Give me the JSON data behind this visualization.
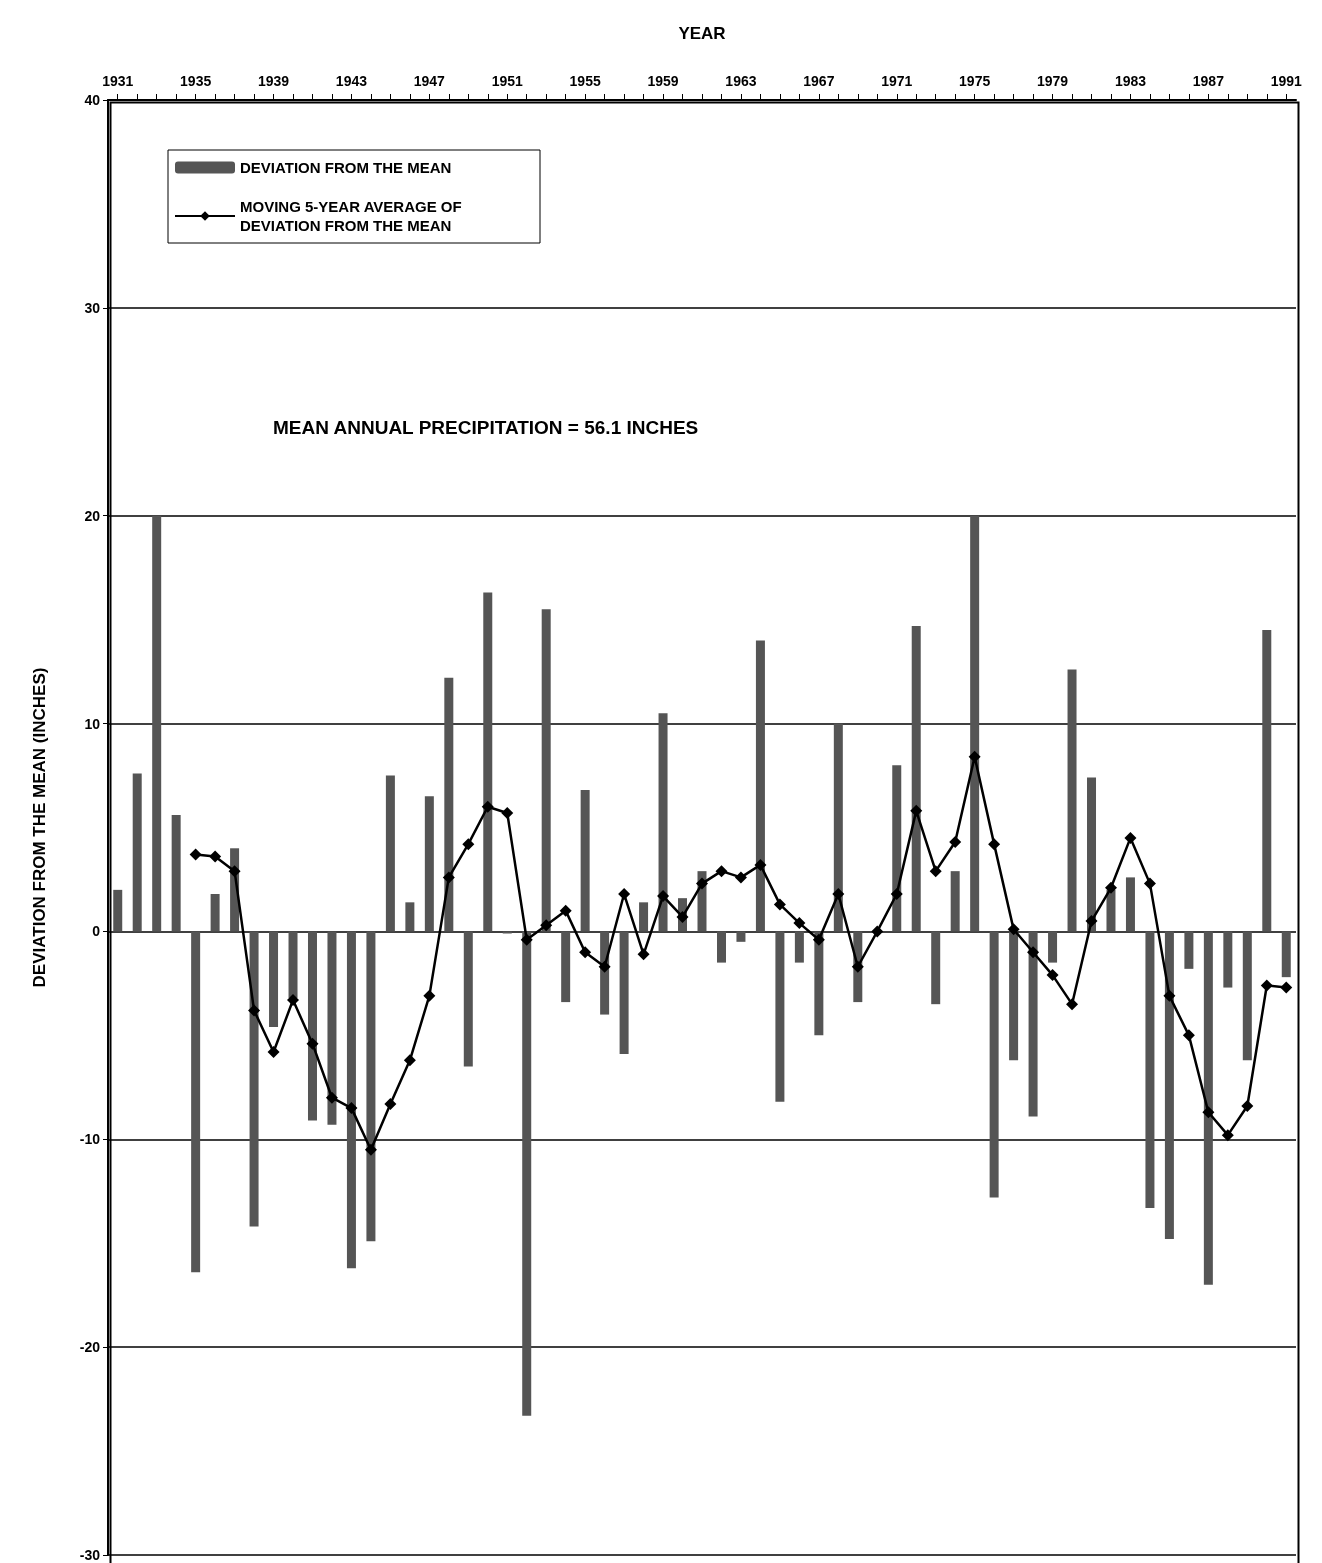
{
  "chart_data": {
    "type": "bar",
    "xlabel": "YEAR",
    "ylabel": "DEVIATION FROM THE MEAN (INCHES)",
    "categories": [
      "1931",
      null,
      null,
      null,
      "1935",
      null,
      null,
      null,
      "1939",
      null,
      null,
      null,
      "1943",
      null,
      null,
      null,
      "1947",
      null,
      null,
      null,
      "1951",
      null,
      null,
      null,
      "1955",
      null,
      null,
      null,
      "1959",
      null,
      null,
      null,
      "1963",
      null,
      null,
      null,
      "1967",
      null,
      null,
      null,
      "1971",
      null,
      null,
      null,
      "1975",
      null,
      null,
      null,
      "1979",
      null,
      null,
      null,
      "1983",
      null,
      null,
      null,
      "1987",
      null,
      null,
      null,
      "1991"
    ],
    "series": [
      {
        "name": "DEVIATION FROM THE MEAN",
        "color": "#555555",
        "values": [
          2.0,
          7.6,
          20,
          5.6,
          -16.4,
          1.8,
          4.0,
          -14.2,
          -4.6,
          -3.2,
          -9.1,
          -9.3,
          -16.2,
          -14.9,
          7.5,
          1.4,
          6.5,
          12.2,
          -6.5,
          16.3,
          -0.1,
          -23.3,
          15.5,
          -3.4,
          6.8,
          -4.0,
          -5.9,
          1.4,
          10.5,
          1.6,
          2.9,
          -1.5,
          -0.5,
          14.0,
          -8.2,
          -1.5,
          -5.0,
          10.0,
          -3.4,
          0,
          8.0,
          14.7,
          -3.5,
          2.9,
          20,
          -12.8,
          -6.2,
          -8.9,
          -1.5,
          12.6,
          7.4,
          2.0,
          2.6,
          -13.3,
          -14.8,
          -1.8,
          -17.0,
          -2.7,
          -6.2,
          14.5,
          -2.2
        ]
      },
      {
        "name": "MOVING 5-YEAR AVERAGE OF DEVIATION FROM THE MEAN",
        "type": "line",
        "color": "#000000",
        "marker": "diamond",
        "values": [
          null,
          null,
          null,
          null,
          3.7,
          3.6,
          2.9,
          -3.8,
          -5.8,
          -3.3,
          -5.4,
          -8.0,
          -8.5,
          -10.5,
          -8.3,
          -6.2,
          -3.1,
          2.6,
          4.2,
          6.0,
          5.7,
          -0.4,
          0.3,
          1.0,
          -1.0,
          -1.7,
          1.8,
          -1.1,
          1.7,
          0.7,
          2.3,
          2.9,
          2.6,
          3.2,
          1.3,
          0.4,
          -0.4,
          1.8,
          -1.7,
          0.0,
          1.8,
          5.8,
          2.9,
          4.3,
          8.4,
          4.2,
          0.1,
          -1.0,
          -2.1,
          -3.5,
          0.5,
          2.1,
          4.5,
          2.3,
          -3.1,
          -5.0,
          -8.7,
          -9.8,
          -8.4,
          -2.6,
          -2.7
        ]
      }
    ],
    "ylim": [
      -30,
      40
    ],
    "yticks": [
      -30,
      -20,
      -10,
      0,
      10,
      20,
      30,
      40
    ],
    "grid": "y",
    "legend": "top left",
    "annotations": [
      "MEAN ANNUAL PRECIPITATION = 56.1 INCHES"
    ]
  }
}
